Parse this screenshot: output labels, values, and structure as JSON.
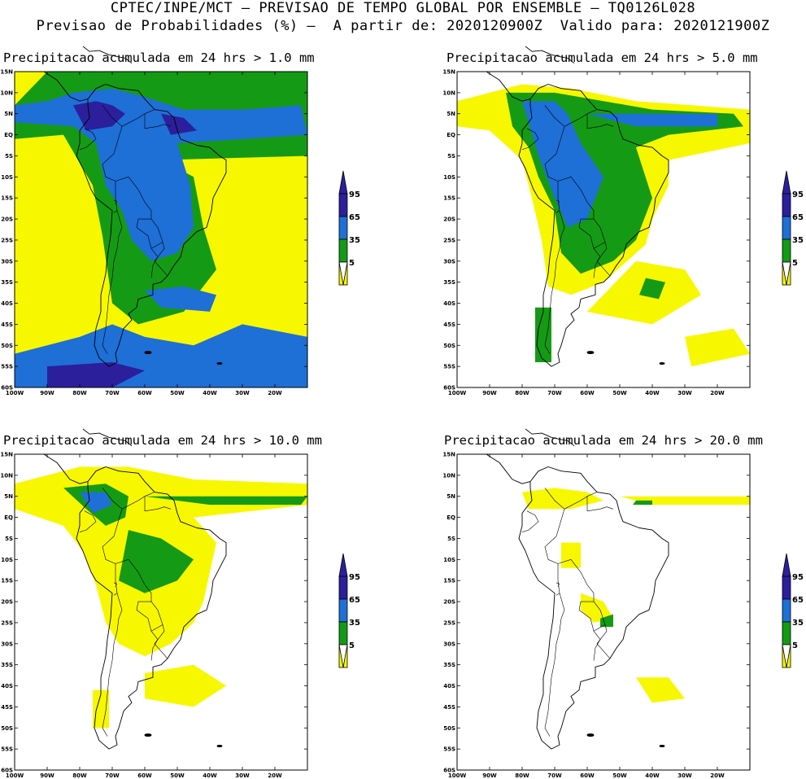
{
  "header": {
    "line1": "CPTEC/INPE/MCT – PREVISAO DE TEMPO GLOBAL POR ENSEMBLE – TQ0126L028",
    "line2": "Previsao de Probabilidades (%) –  A partir de: 2020120900Z  Valido para: 2020121900Z"
  },
  "axes": {
    "lat_labels": [
      "15N",
      "10N",
      "5N",
      "EQ",
      "5S",
      "10S",
      "15S",
      "20S",
      "25S",
      "30S",
      "35S",
      "40S",
      "45S",
      "50S",
      "55S",
      "60S"
    ],
    "lon_labels": [
      "100W",
      "90W",
      "80W",
      "70W",
      "60W",
      "50W",
      "40W",
      "30W",
      "20W"
    ],
    "lat_range": [
      -60,
      15
    ],
    "lon_range": [
      -100,
      -10
    ]
  },
  "legend": {
    "levels": [
      "95",
      "65",
      "35",
      "5"
    ],
    "colors": {
      "c95": "#2b1f9c",
      "c65": "#1e6fd6",
      "c35": "#159a15",
      "c5": "#f7f700"
    }
  },
  "panels": [
    {
      "id": "p1",
      "title": "Precipitacao acumulada em 24 hrs > 1.0 mm"
    },
    {
      "id": "p2",
      "title": "Precipitacao acumulada em 24 hrs > 5.0 mm"
    },
    {
      "id": "p3",
      "title": "Precipitacao acumulada em 24 hrs > 10.0 mm"
    },
    {
      "id": "p4",
      "title": "Precipitacao acumulada em 24 hrs > 20.0 mm"
    }
  ]
}
